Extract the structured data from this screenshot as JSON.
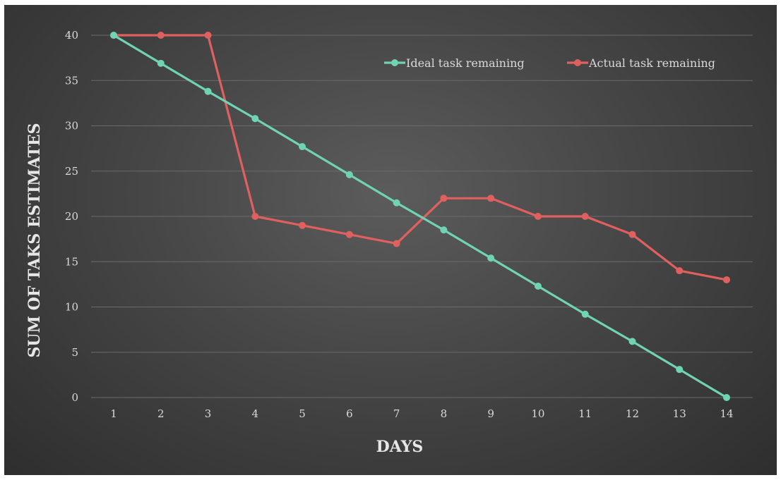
{
  "chart_data": {
    "type": "line",
    "title": "",
    "xlabel": "DAYS",
    "ylabel": "SUM OF TAKS ESTIMATES",
    "x": [
      1,
      2,
      3,
      4,
      5,
      6,
      7,
      8,
      9,
      10,
      11,
      12,
      13,
      14
    ],
    "ylim": [
      0,
      40
    ],
    "yticks": [
      0,
      5,
      10,
      15,
      20,
      25,
      30,
      35,
      40
    ],
    "grid": true,
    "legend_position": "top-right",
    "series": [
      {
        "name": "Ideal task remaining",
        "color": "#6fd3b4",
        "values": [
          40,
          36.9,
          33.8,
          30.8,
          27.7,
          24.6,
          21.5,
          18.5,
          15.4,
          12.3,
          9.2,
          6.2,
          3.1,
          0
        ]
      },
      {
        "name": "Actual task remaining",
        "color": "#e0605f",
        "values": [
          40,
          40,
          40,
          20,
          19,
          18,
          17,
          22,
          22,
          20,
          20,
          18,
          14,
          13
        ]
      }
    ]
  }
}
